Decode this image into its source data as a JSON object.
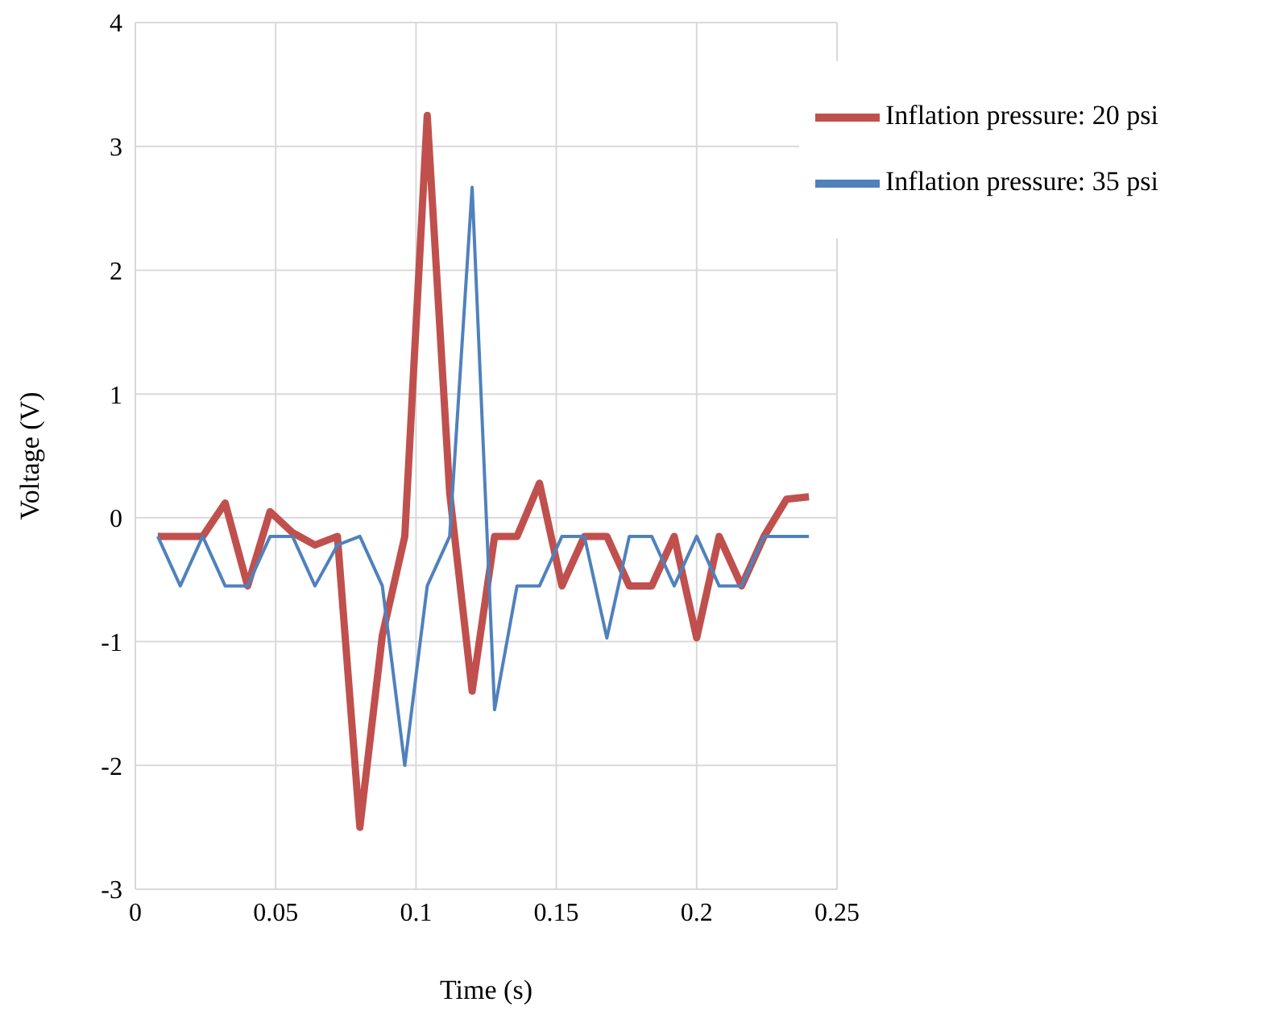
{
  "chart_data": {
    "type": "line",
    "xlabel": "Time (s)",
    "ylabel": "Voltage (V)",
    "x": [
      0.008,
      0.016,
      0.024,
      0.032,
      0.04,
      0.048,
      0.056,
      0.064,
      0.072,
      0.08,
      0.088,
      0.096,
      0.104,
      0.112,
      0.12,
      0.128,
      0.136,
      0.144,
      0.152,
      0.16,
      0.168,
      0.176,
      0.184,
      0.192,
      0.2,
      0.208,
      0.216,
      0.224,
      0.232,
      0.24
    ],
    "series": [
      {
        "name": "Inflation pressure: 20 psi",
        "color": "#c0504d",
        "values": [
          -0.15,
          -0.15,
          -0.15,
          0.12,
          -0.55,
          0.05,
          -0.12,
          -0.22,
          -0.15,
          -2.5,
          -0.95,
          -0.15,
          3.25,
          0.2,
          -1.4,
          -0.15,
          -0.15,
          0.28,
          -0.55,
          -0.15,
          -0.15,
          -0.55,
          -0.55,
          -0.15,
          -0.97,
          -0.15,
          -0.55,
          -0.15,
          0.15,
          0.17
        ]
      },
      {
        "name": "Inflation pressure: 35 psi",
        "color": "#4f81bd",
        "values": [
          -0.15,
          -0.55,
          -0.15,
          -0.55,
          -0.55,
          -0.15,
          -0.15,
          -0.55,
          -0.22,
          -0.15,
          -0.55,
          -2.0,
          -0.55,
          -0.15,
          2.67,
          -1.55,
          -0.55,
          -0.55,
          -0.15,
          -0.15,
          -0.97,
          -0.15,
          -0.15,
          -0.55,
          -0.15,
          -0.55,
          -0.55,
          -0.15,
          -0.15,
          -0.15
        ]
      }
    ],
    "xlim": [
      0,
      0.25
    ],
    "xticks": [
      0,
      0.05,
      0.1,
      0.15,
      0.2,
      0.25
    ],
    "ylim": [
      -3,
      4
    ],
    "yticks": [
      -3,
      -2,
      -1,
      0,
      1,
      2,
      3,
      4
    ],
    "grid": true,
    "legend": "top right",
    "marker": "none",
    "line_style": "solid"
  }
}
